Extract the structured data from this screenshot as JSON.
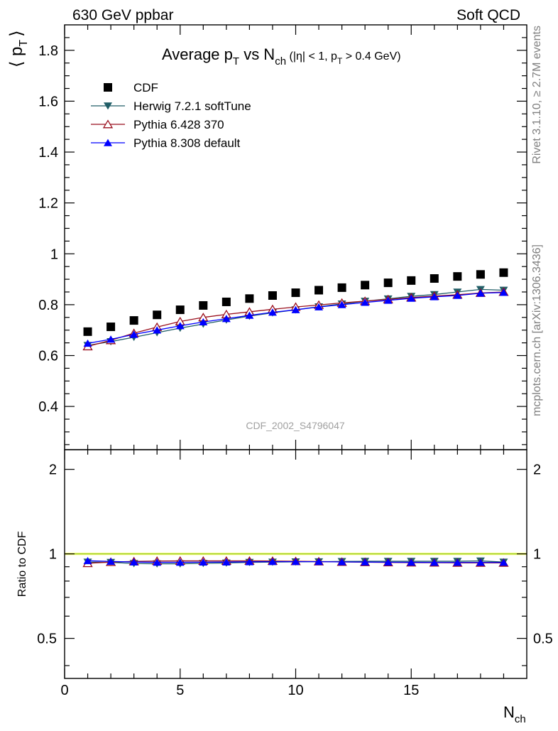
{
  "header": {
    "left": "630 GeV ppbar",
    "right": "Soft QCD"
  },
  "side": {
    "rivet": "Rivet 3.1.10, ≥ 2.7M events",
    "mcplots": "mcplots.cern.ch [arXiv:1306.3436]"
  },
  "chart_data": [
    {
      "type": "scatter",
      "title": "Average p_T vs N_ch (|η| < 1, p_T > 0.4 GeV)",
      "title_parts": {
        "main": "Average p",
        "main_sub": "T",
        "vs": " vs N",
        "vs_sub": "ch",
        "cut_a": " (|η| < 1, p",
        "cut_sub": "T",
        "cut_b": " > 0.4 GeV)"
      },
      "ylabel": "⟨ p_T ⟩",
      "ylabel_parts": {
        "main": "⟨ p",
        "sub": "T",
        "close": "⟩"
      },
      "watermark": "CDF_2002_S4796047",
      "xlim": [
        0,
        20
      ],
      "ylim": [
        0.23,
        1.9
      ],
      "xticks": [
        0,
        5,
        10,
        15
      ],
      "yticks": [
        0.4,
        0.6,
        0.8,
        1.0,
        1.2,
        1.4,
        1.6,
        1.8
      ],
      "ytick_labels": [
        "0.4",
        "0.6",
        "0.8",
        "1",
        "1.2",
        "1.4",
        "1.6",
        "1.8"
      ],
      "legend_position": "top-left",
      "x": [
        1,
        2,
        3,
        4,
        5,
        6,
        7,
        8,
        9,
        10,
        11,
        12,
        13,
        14,
        15,
        16,
        17,
        18,
        19
      ],
      "series": [
        {
          "name": "CDF",
          "marker": "square",
          "color": "#000000",
          "line": false,
          "values": [
            0.694,
            0.713,
            0.738,
            0.76,
            0.78,
            0.797,
            0.811,
            0.824,
            0.836,
            0.847,
            0.857,
            0.867,
            0.877,
            0.886,
            0.895,
            0.903,
            0.911,
            0.919,
            0.926
          ]
        },
        {
          "name": "Herwig 7.2.1 softTune",
          "marker": "triangle-down",
          "color": "#215e67",
          "line": true,
          "values": [
            0.64,
            0.655,
            0.672,
            0.69,
            0.708,
            0.724,
            0.74,
            0.755,
            0.768,
            0.78,
            0.792,
            0.803,
            0.814,
            0.823,
            0.833,
            0.84,
            0.85,
            0.86,
            0.857
          ]
        },
        {
          "name": "Pythia 6.428 370",
          "marker": "triangle-up-open",
          "color": "#990e1c",
          "line": true,
          "values": [
            0.636,
            0.66,
            0.688,
            0.712,
            0.734,
            0.75,
            0.762,
            0.772,
            0.782,
            0.791,
            0.799,
            0.807,
            0.814,
            0.821,
            0.828,
            0.834,
            0.839,
            0.846,
            0.85
          ]
        },
        {
          "name": "Pythia 8.308 default",
          "marker": "triangle-up",
          "color": "#0000ff",
          "line": true,
          "values": [
            0.648,
            0.664,
            0.683,
            0.7,
            0.717,
            0.732,
            0.745,
            0.758,
            0.77,
            0.78,
            0.791,
            0.8,
            0.809,
            0.817,
            0.825,
            0.831,
            0.836,
            0.845,
            0.848
          ]
        }
      ]
    },
    {
      "type": "scatter",
      "ylabel": "Ratio to CDF",
      "xlabel": "N_ch",
      "xlabel_parts": {
        "main": "N",
        "sub": "ch"
      },
      "xlim": [
        0,
        20
      ],
      "ylim": [
        0.36,
        2.35
      ],
      "ylog": true,
      "xticks": [
        0,
        5,
        10,
        15
      ],
      "xtick_labels": [
        "0",
        "5",
        "10",
        "15"
      ],
      "yticks": [
        0.5,
        1,
        2
      ],
      "ytick_labels": [
        "0.5",
        "1",
        "2"
      ],
      "reference_band": {
        "center": 1.0,
        "low": 0.99,
        "high": 1.01,
        "band_color": "#ffff80",
        "line_color": "#9acd32"
      },
      "x": [
        1,
        2,
        3,
        4,
        5,
        6,
        7,
        8,
        9,
        10,
        11,
        12,
        13,
        14,
        15,
        16,
        17,
        18,
        19
      ],
      "series": [
        {
          "name": "Herwig 7.2.1 softTune",
          "marker": "triangle-down",
          "color": "#215e67",
          "values": [
            0.935,
            0.933,
            0.924,
            0.922,
            0.922,
            0.925,
            0.928,
            0.933,
            0.935,
            0.937,
            0.938,
            0.94,
            0.941,
            0.941,
            0.941,
            0.941,
            0.941,
            0.944,
            0.935
          ]
        },
        {
          "name": "Pythia 6.428 370",
          "marker": "triangle-up-open",
          "color": "#990e1c",
          "values": [
            0.926,
            0.935,
            0.94,
            0.943,
            0.944,
            0.944,
            0.944,
            0.944,
            0.943,
            0.941,
            0.939,
            0.936,
            0.934,
            0.932,
            0.931,
            0.93,
            0.929,
            0.929,
            0.929
          ]
        },
        {
          "name": "Pythia 8.308 default",
          "marker": "triangle-up",
          "color": "#0000ff",
          "values": [
            0.945,
            0.94,
            0.935,
            0.933,
            0.933,
            0.934,
            0.935,
            0.937,
            0.938,
            0.938,
            0.938,
            0.936,
            0.935,
            0.934,
            0.933,
            0.932,
            0.932,
            0.932,
            0.932
          ]
        }
      ]
    }
  ]
}
